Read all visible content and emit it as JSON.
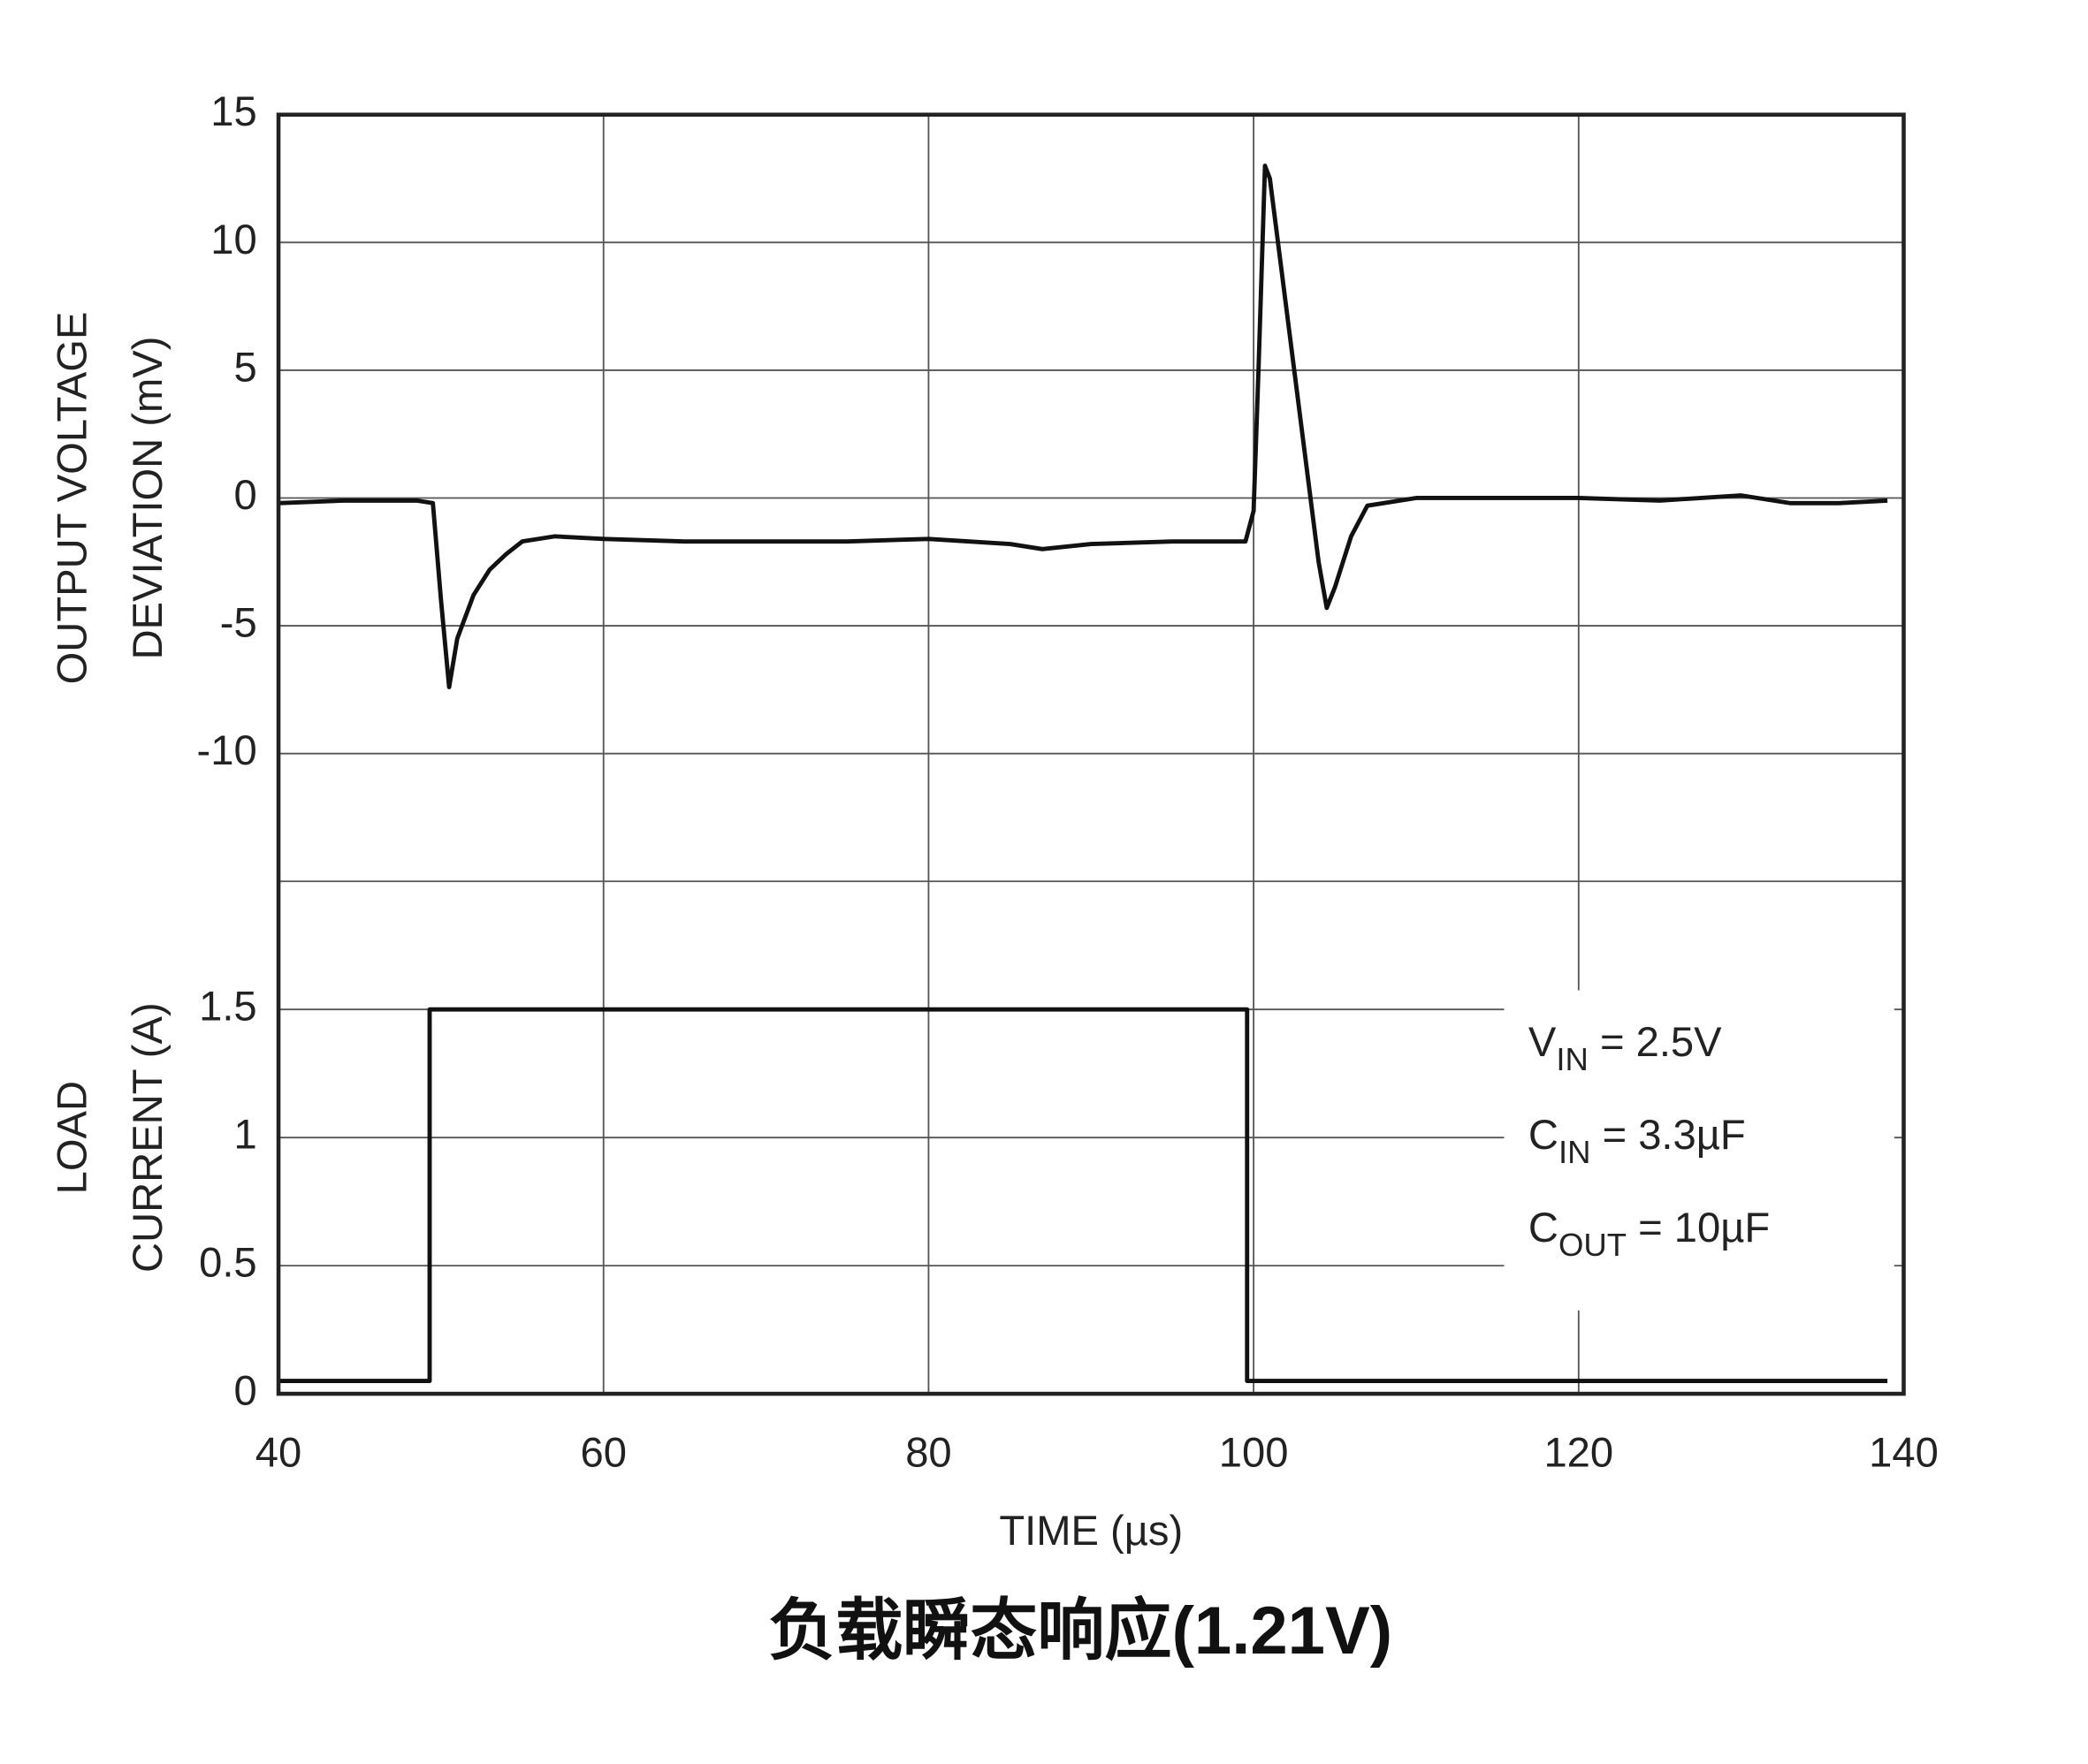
{
  "chart_data": [
    {
      "type": "line",
      "ylabel": [
        "OUTPUT VOLTAGE",
        "DEVIATION (mV)"
      ],
      "xlim": [
        40,
        140
      ],
      "ylim": [
        -15,
        15
      ],
      "yticks": [
        -10,
        -5,
        0,
        5,
        10,
        15
      ],
      "grid": true,
      "series": [
        {
          "name": "Output voltage deviation",
          "color": "#111111",
          "x": [
            40,
            44,
            48.5,
            49.5,
            50,
            50.5,
            51,
            52,
            53,
            54,
            55,
            57,
            60,
            65,
            70,
            75,
            80,
            85,
            87,
            90,
            95,
            99.5,
            100,
            100.3,
            100.7,
            101,
            102,
            103,
            104,
            104.5,
            105,
            106,
            107,
            110,
            115,
            120,
            125,
            130,
            133,
            136,
            139
          ],
          "values": [
            -0.2,
            -0.1,
            -0.1,
            -0.2,
            -4,
            -7.4,
            -5.5,
            -3.8,
            -2.8,
            -2.2,
            -1.7,
            -1.5,
            -1.6,
            -1.7,
            -1.7,
            -1.7,
            -1.6,
            -1.8,
            -2,
            -1.8,
            -1.7,
            -1.7,
            -0.5,
            5,
            13,
            12.5,
            7.5,
            2.5,
            -2.5,
            -4.3,
            -3.5,
            -1.5,
            -0.3,
            0,
            0,
            0,
            -0.1,
            0.1,
            -0.2,
            -0.2,
            -0.1
          ]
        }
      ]
    },
    {
      "type": "line",
      "ylabel": [
        "LOAD",
        "CURRENT (A)"
      ],
      "xlabel": "TIME (µs)",
      "xlim": [
        40,
        140
      ],
      "xticks": [
        40,
        60,
        80,
        100,
        120,
        140
      ],
      "ylim": [
        0,
        2
      ],
      "yticks": [
        0,
        0.5,
        1,
        1.5
      ],
      "grid": true,
      "series": [
        {
          "name": "Load current",
          "color": "#111111",
          "x": [
            40,
            49.3,
            49.3,
            99.6,
            99.6,
            139
          ],
          "values": [
            0.05,
            0.05,
            1.5,
            1.5,
            0.05,
            0.05
          ]
        }
      ],
      "annotations": [
        {
          "text": "V",
          "sub": "IN",
          "tail": " = 2.5V"
        },
        {
          "text": "C",
          "sub": "IN",
          "tail": " = 3.3µF"
        },
        {
          "text": "C",
          "sub": "OUT",
          "tail": " = 10µF"
        }
      ]
    }
  ],
  "caption": "负载瞬态响应(1.21V)"
}
